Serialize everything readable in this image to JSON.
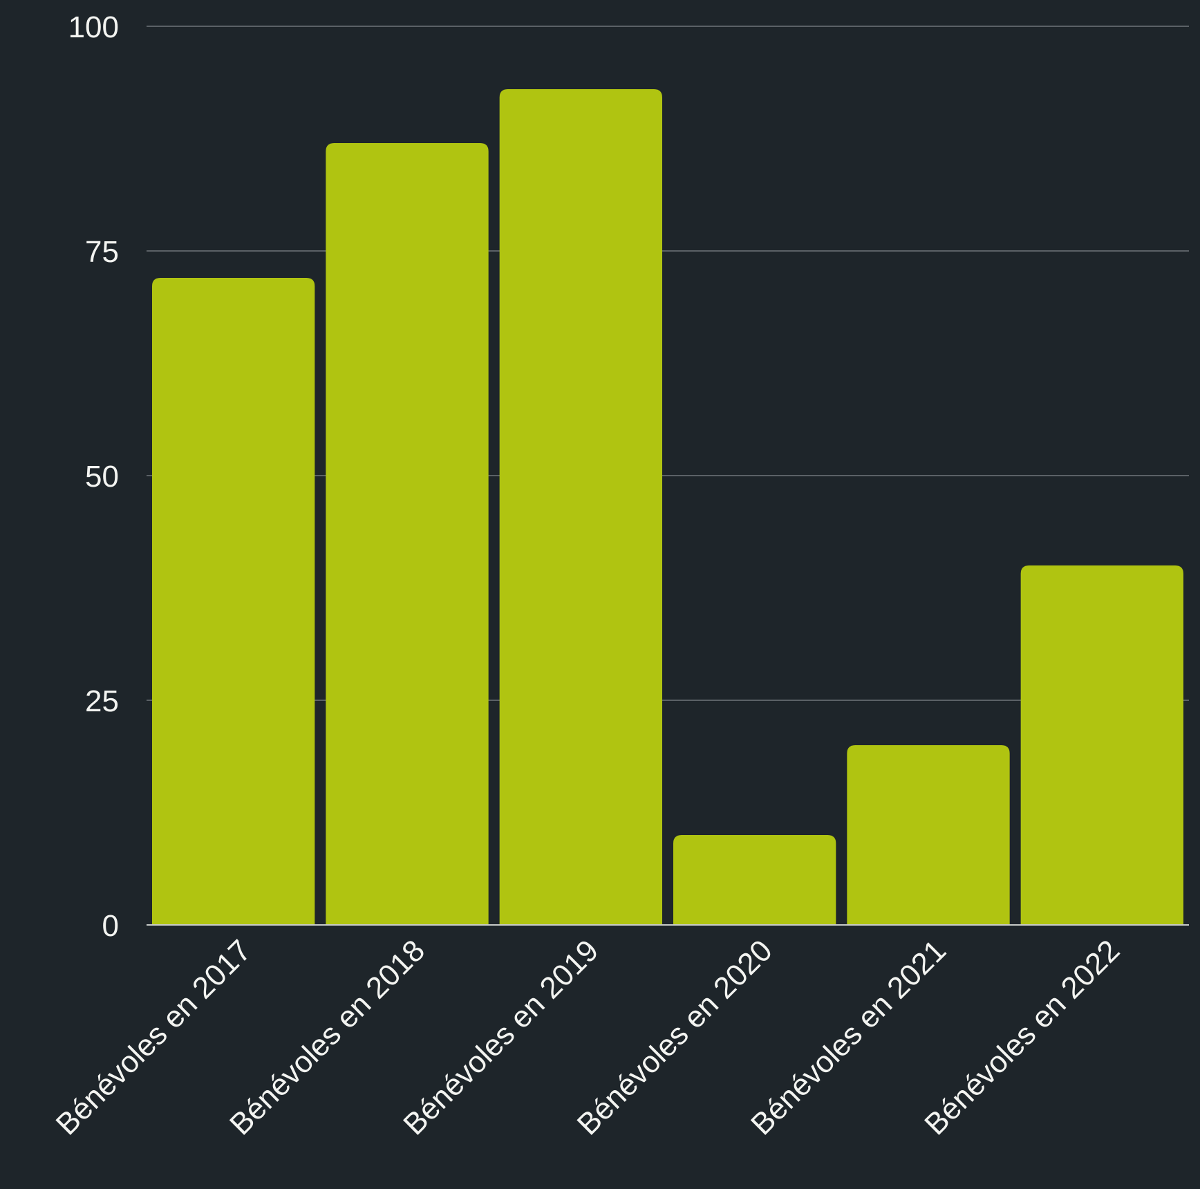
{
  "chart_data": {
    "type": "bar",
    "categories": [
      "Bénévoles en 2017",
      "Bénévoles en 2018",
      "Bénévoles en 2019",
      "Bénévoles en 2020",
      "Bénévoles en 2021",
      "Bénévoles en 2022"
    ],
    "values": [
      72,
      87,
      93,
      10,
      20,
      40
    ],
    "title": "",
    "xlabel": "",
    "ylabel": "",
    "ylim": [
      0,
      100
    ],
    "yticks": [
      0,
      25,
      50,
      75,
      100
    ],
    "grid": true,
    "legend": "none",
    "colors": {
      "background": "#1e252a",
      "bar": "#b0c411",
      "grid": "#5b6166",
      "text": "#f3f4f1"
    }
  }
}
